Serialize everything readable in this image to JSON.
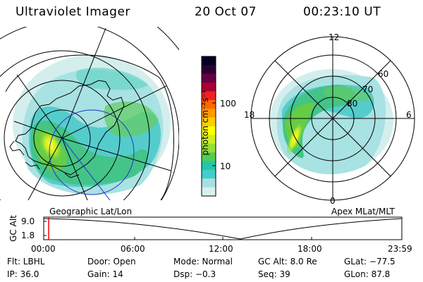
{
  "header": {
    "instrument": "Ultraviolet Imager",
    "date": "20 Oct 07",
    "time": "00:23:10 UT"
  },
  "left_panel": {
    "caption": "Geographic Lat/Lon"
  },
  "right_panel": {
    "caption": "Apex MLat/MLT",
    "mlt_labels": [
      "12",
      "18",
      "6",
      "0"
    ],
    "mlat_labels": [
      "60",
      "70",
      "80"
    ]
  },
  "colorbar": {
    "unit_label": "photon cm⁻²s⁻¹",
    "ticks": [
      "100",
      "10"
    ],
    "colors": [
      "#d8f0f0",
      "#a8e0e0",
      "#44cccc",
      "#22c8a8",
      "#55cc55",
      "#99dd33",
      "#ccee22",
      "#ffff00",
      "#ffcc00",
      "#ff9900",
      "#ff6600",
      "#ee2222",
      "#aa0033",
      "#660044",
      "#2a0033",
      "#000022"
    ]
  },
  "altitude_plot": {
    "ylabel": "GC Alt",
    "yticks": [
      "9.0",
      "1.8"
    ],
    "xticks": [
      "00:00",
      "06:00",
      "12:00",
      "18:00",
      "23:59"
    ],
    "current_marker_color": "#ff0000"
  },
  "footer": {
    "row1": {
      "filter": "Flt: LBHL",
      "door": "Door: Open",
      "mode": "Mode: Normal",
      "gc_alt": "GC Alt: 8.0 Re",
      "glat": "GLat: −77.5"
    },
    "row2": {
      "ip": "IP: 36.0",
      "gain": "Gain: 14",
      "dsp": "Dsp:    −0.3",
      "seq": "Seq: 39",
      "glon": "GLon:  87.8"
    }
  }
}
